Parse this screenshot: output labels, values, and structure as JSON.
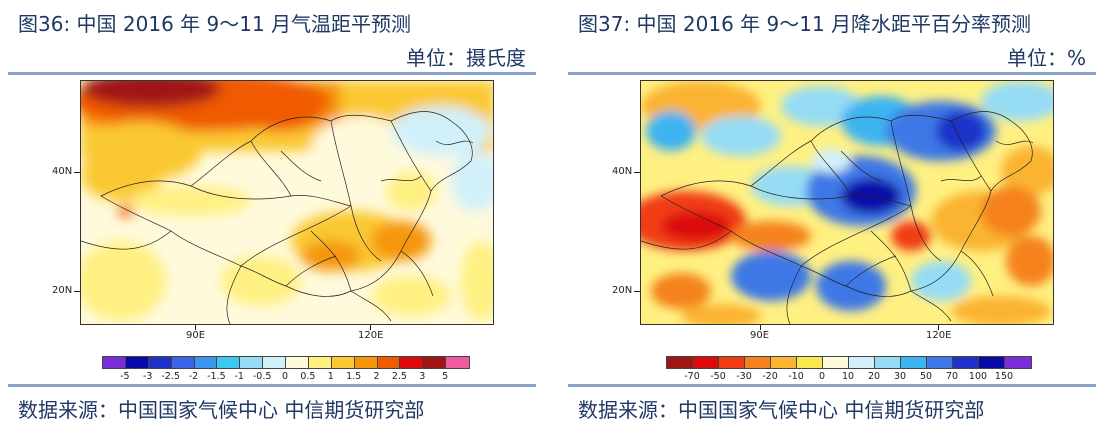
{
  "left": {
    "title": "图36: 中国 2016 年 9～11 月气温距平预测",
    "unit": "单位：摄氏度",
    "source": "数据来源：中国国家气候中心  中信期货研究部",
    "y_ticks": [
      "40N",
      "20N"
    ],
    "x_ticks": [
      "90E",
      "120E"
    ],
    "colorbar": {
      "labels": [
        "-5",
        "-3",
        "-2.5",
        "-2",
        "-1.5",
        "-1",
        "-0.5",
        "0",
        "0.5",
        "1",
        "1.5",
        "2",
        "2.5",
        "3",
        "5"
      ],
      "colors": [
        "#7b2ed6",
        "#0a0aa8",
        "#1e32c8",
        "#3c64e6",
        "#3c96f0",
        "#3cc8f0",
        "#96dcf5",
        "#d2f0fa",
        "#fffadc",
        "#fff082",
        "#fac832",
        "#f5960a",
        "#f05a00",
        "#dc0a0a",
        "#a01414",
        "#f05aa0"
      ]
    }
  },
  "right": {
    "title": "图37: 中国 2016 年 9～11 月降水距平百分率预测",
    "unit": "单位：%",
    "source": "数据来源：中国国家气候中心  中信期货研究部",
    "y_ticks": [
      "40N",
      "20N"
    ],
    "x_ticks": [
      "90E",
      "120E"
    ],
    "colorbar": {
      "labels": [
        "-70",
        "-50",
        "-30",
        "-20",
        "-10",
        "0",
        "10",
        "20",
        "30",
        "50",
        "70",
        "100",
        "150"
      ],
      "colors": [
        "#a01414",
        "#dc0a0a",
        "#f03c14",
        "#f5821e",
        "#fab432",
        "#fae650",
        "#fffadc",
        "#d2f0fa",
        "#96dcf5",
        "#3cb4f0",
        "#3c78e6",
        "#1e32c8",
        "#0a0aa8",
        "#7b2ed6"
      ]
    }
  }
}
